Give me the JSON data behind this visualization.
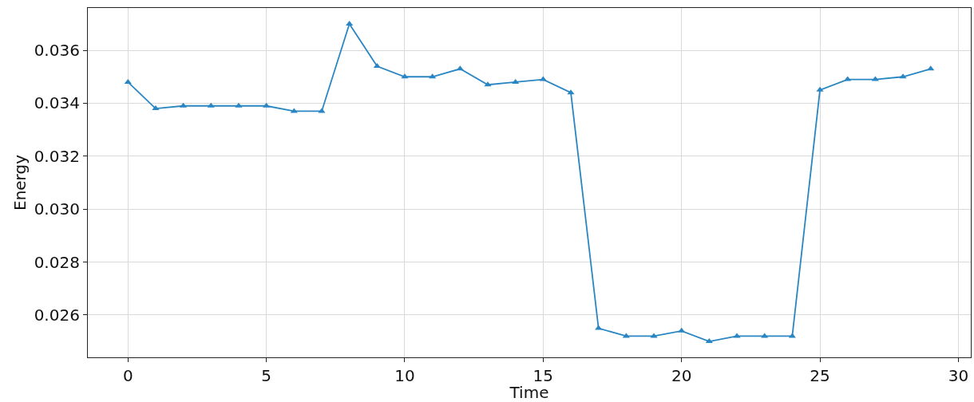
{
  "chart_data": {
    "type": "line",
    "xlabel": "Time",
    "ylabel": "Energy",
    "x": [
      0,
      1,
      2,
      3,
      4,
      5,
      6,
      7,
      8,
      9,
      10,
      11,
      12,
      13,
      14,
      15,
      16,
      17,
      18,
      19,
      20,
      21,
      22,
      23,
      24,
      25,
      26,
      27,
      28,
      29
    ],
    "series": [
      {
        "color": "#2a86c2",
        "values": [
          0.0348,
          0.0338,
          0.0339,
          0.0339,
          0.0339,
          0.0339,
          0.0337,
          0.0337,
          0.037,
          0.0354,
          0.035,
          0.035,
          0.0353,
          0.0347,
          0.0348,
          0.0349,
          0.0344,
          0.0255,
          0.0252,
          0.0252,
          0.0254,
          0.025,
          0.0252,
          0.0252,
          0.0252,
          0.0345,
          0.0349,
          0.0349,
          0.035,
          0.0353
        ]
      }
    ],
    "xlim": [
      -1.45,
      30.45
    ],
    "xticks": [
      0,
      5,
      10,
      15,
      20,
      25,
      30
    ],
    "ylim": [
      0.0244,
      0.0376
    ],
    "yticks": [
      {
        "value": 0.026,
        "label": "0.026"
      },
      {
        "value": 0.028,
        "label": "0.028"
      },
      {
        "value": 0.03,
        "label": "0.030"
      },
      {
        "value": 0.032,
        "label": "0.032"
      },
      {
        "value": 0.034,
        "label": "0.034"
      },
      {
        "value": 0.036,
        "label": "0.036"
      }
    ],
    "grid": true,
    "marker": "triangle",
    "line_style": "solid"
  }
}
